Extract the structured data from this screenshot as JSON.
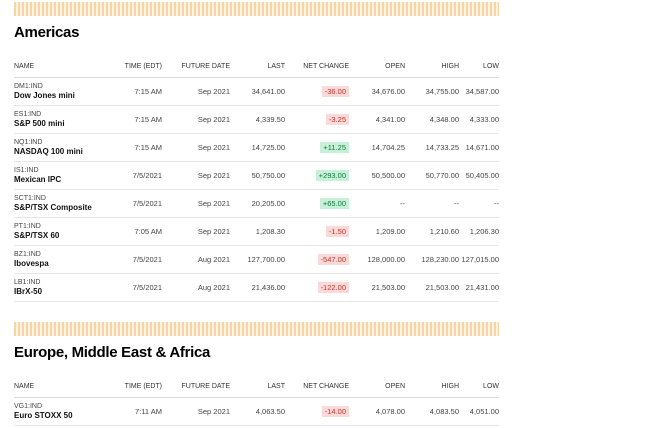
{
  "columns": [
    "NAME",
    "TIME (EDT)",
    "FUTURE DATE",
    "LAST",
    "NET CHANGE",
    "OPEN",
    "HIGH",
    "LOW"
  ],
  "colors": {
    "down_bg": "#fbd9d9",
    "down_text": "#c0392b",
    "up_bg": "#c6f1d8",
    "up_text": "#137a3a"
  },
  "sections": [
    {
      "title": "Americas",
      "rows": [
        {
          "ticker": "DM1:IND",
          "name": "Dow Jones mini",
          "time": "7:15 AM",
          "date": "Sep 2021",
          "last": "34,641.00",
          "change": "-36.00",
          "dir": "down",
          "open": "34,676.00",
          "high": "34,755.00",
          "low": "34,587.00"
        },
        {
          "ticker": "ES1:IND",
          "name": "S&P 500 mini",
          "time": "7:15 AM",
          "date": "Sep 2021",
          "last": "4,339.50",
          "change": "-3.25",
          "dir": "down",
          "open": "4,341.00",
          "high": "4,348.00",
          "low": "4,333.00"
        },
        {
          "ticker": "NQ1:IND",
          "name": "NASDAQ 100 mini",
          "time": "7:15 AM",
          "date": "Sep 2021",
          "last": "14,725.00",
          "change": "+11.25",
          "dir": "up",
          "open": "14,704.25",
          "high": "14,733.25",
          "low": "14,671.00"
        },
        {
          "ticker": "IS1:IND",
          "name": "Mexican IPC",
          "time": "7/5/2021",
          "date": "Sep 2021",
          "last": "50,750.00",
          "change": "+293.00",
          "dir": "up",
          "open": "50,500.00",
          "high": "50,770.00",
          "low": "50,405.00"
        },
        {
          "ticker": "SCT1:IND",
          "name": "S&P/TSX Composite",
          "time": "7/5/2021",
          "date": "Sep 2021",
          "last": "20,205.00",
          "change": "+65.00",
          "dir": "up",
          "open": "--",
          "high": "--",
          "low": "--"
        },
        {
          "ticker": "PT1:IND",
          "name": "S&P/TSX 60",
          "time": "7:05 AM",
          "date": "Sep 2021",
          "last": "1,208.30",
          "change": "-1.50",
          "dir": "down",
          "open": "1,209.00",
          "high": "1,210.60",
          "low": "1,206.30"
        },
        {
          "ticker": "BZ1:IND",
          "name": "Ibovespa",
          "time": "7/5/2021",
          "date": "Aug 2021",
          "last": "127,700.00",
          "change": "-547.00",
          "dir": "down",
          "open": "128,000.00",
          "high": "128,230.00",
          "low": "127,015.00"
        },
        {
          "ticker": "LB1:IND",
          "name": "IBrX-50",
          "time": "7/5/2021",
          "date": "Aug 2021",
          "last": "21,436.00",
          "change": "-122.00",
          "dir": "down",
          "open": "21,503.00",
          "high": "21,503.00",
          "low": "21,431.00"
        }
      ]
    },
    {
      "title": "Europe, Middle East & Africa",
      "rows": [
        {
          "ticker": "VG1:IND",
          "name": "Euro STOXX 50",
          "time": "7:11 AM",
          "date": "Sep 2021",
          "last": "4,063.50",
          "change": "-14.00",
          "dir": "down",
          "open": "4,078.00",
          "high": "4,083.50",
          "low": "4,051.00"
        }
      ]
    }
  ]
}
